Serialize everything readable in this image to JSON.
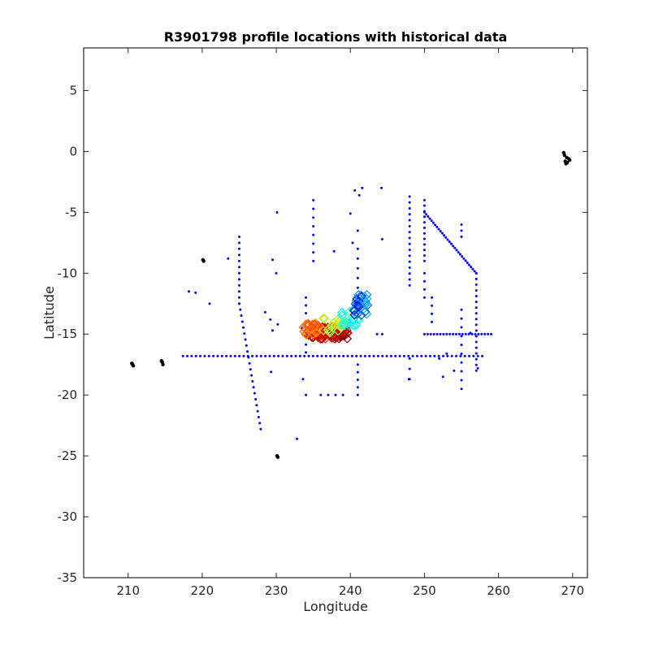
{
  "chart_data": {
    "type": "scatter",
    "title": "R3901798 profile locations with historical data",
    "xlabel": "Longitude",
    "ylabel": "Latitude",
    "xlim": [
      204,
      272
    ],
    "ylim": [
      -35,
      8.5
    ],
    "xticks": [
      210,
      220,
      230,
      240,
      250,
      260,
      270
    ],
    "yticks": [
      5,
      0,
      -5,
      -10,
      -15,
      -20,
      -25,
      -30,
      -35
    ],
    "grid": false,
    "legend": "none",
    "colors": {
      "historical": "#0000ff",
      "coast": "#000000",
      "profiles_early": "#cc0000",
      "profiles_late": "#0000aa"
    },
    "series": [
      {
        "kind": "coast",
        "points": [
          [
            210.6,
            -17.5
          ],
          [
            210.7,
            -17.6
          ],
          [
            210.5,
            -17.4
          ],
          [
            214.6,
            -17.3
          ],
          [
            214.7,
            -17.5
          ],
          [
            214.5,
            -17.2
          ],
          [
            220.1,
            -8.9
          ],
          [
            220.2,
            -9.0
          ],
          [
            230.1,
            -25.0
          ],
          [
            230.2,
            -25.1
          ],
          [
            268.9,
            -0.3
          ],
          [
            269.2,
            -0.5
          ],
          [
            269.0,
            -0.8
          ],
          [
            269.5,
            -0.6
          ],
          [
            269.1,
            -1.0
          ],
          [
            268.8,
            -0.1
          ],
          [
            269.6,
            -0.7
          ],
          [
            269.3,
            -0.9
          ]
        ]
      },
      {
        "kind": "historical_segments",
        "segments": [
          {
            "from": [
              217.4,
              -16.8
            ],
            "to": [
              257.8,
              -16.8
            ],
            "n": 70
          },
          {
            "from": [
              225.0,
              -7.0
            ],
            "to": [
              225.0,
              -12.5
            ],
            "n": 12
          },
          {
            "from": [
              225.0,
              -12.5
            ],
            "to": [
              227.9,
              -22.8
            ],
            "n": 22
          },
          {
            "from": [
              250.0,
              -5.0
            ],
            "to": [
              257.0,
              -10.0
            ],
            "n": 30
          },
          {
            "from": [
              257.0,
              -10.0
            ],
            "to": [
              257.0,
              -18.0
            ],
            "n": 18
          },
          {
            "from": [
              250.0,
              -15.0
            ],
            "to": [
              259.0,
              -15.0
            ],
            "n": 22
          },
          {
            "from": [
              248.0,
              -3.7
            ],
            "to": [
              248.0,
              -11.0
            ],
            "n": 16
          },
          {
            "from": [
              250.0,
              -4.0
            ],
            "to": [
              250.0,
              -9.0
            ],
            "n": 12
          },
          {
            "from": [
              235.0,
              -4.0
            ],
            "to": [
              235.0,
              -9.0
            ],
            "n": 8
          },
          {
            "from": [
              241.0,
              -8.0
            ],
            "to": [
              241.0,
              -12.0
            ],
            "n": 6
          },
          {
            "from": [
              255.0,
              -6.0
            ],
            "to": [
              255.0,
              -7.0
            ],
            "n": 3
          },
          {
            "from": [
              255.0,
              -13.0
            ],
            "to": [
              255.0,
              -19.5
            ],
            "n": 10
          },
          {
            "from": [
              234.0,
              -12.0
            ],
            "to": [
              234.0,
              -16.5
            ],
            "n": 8
          },
          {
            "from": [
              241.0,
              -17.5
            ],
            "to": [
              241.0,
              -20.0
            ],
            "n": 5
          },
          {
            "from": [
              248.0,
              -17.0
            ],
            "to": [
              248.0,
              -18.7
            ],
            "n": 3
          },
          {
            "from": [
              250.0,
              -10.0
            ],
            "to": [
              250.0,
              -12.0
            ],
            "n": 4
          },
          {
            "from": [
              251.0,
              -12.0
            ],
            "to": [
              251.0,
              -14.0
            ],
            "n": 4
          }
        ],
        "points": [
          [
            218.2,
            -11.5
          ],
          [
            219.1,
            -11.6
          ],
          [
            221.0,
            -12.5
          ],
          [
            223.5,
            -8.8
          ],
          [
            229.5,
            -8.9
          ],
          [
            230.0,
            -10.0
          ],
          [
            228.5,
            -13.2
          ],
          [
            229.2,
            -13.8
          ],
          [
            229.5,
            -14.7
          ],
          [
            229.3,
            -18.1
          ],
          [
            230.1,
            -5.0
          ],
          [
            230.2,
            -14.2
          ],
          [
            232.8,
            -23.6
          ],
          [
            233.6,
            -18.7
          ],
          [
            234.0,
            -20.0
          ],
          [
            233.5,
            -14.5
          ],
          [
            236.0,
            -20.0
          ],
          [
            237.0,
            -20.0
          ],
          [
            238.0,
            -20.0
          ],
          [
            239.0,
            -20.0
          ],
          [
            237.8,
            -8.2
          ],
          [
            240.0,
            -5.1
          ],
          [
            240.3,
            -7.5
          ],
          [
            240.6,
            -3.2
          ],
          [
            241.2,
            -3.6
          ],
          [
            241.6,
            -3.0
          ],
          [
            241.0,
            -6.5
          ],
          [
            244.2,
            -3.0
          ],
          [
            244.3,
            -7.2
          ],
          [
            243.6,
            -15.0
          ],
          [
            244.3,
            -15.0
          ],
          [
            236.1,
            -15.0
          ],
          [
            247.9,
            -18.7
          ],
          [
            252.0,
            -17.0
          ],
          [
            253.0,
            -16.6
          ],
          [
            252.5,
            -18.5
          ],
          [
            254.0,
            -18.0
          ],
          [
            256.2,
            -14.9
          ],
          [
            257.2,
            -17.8
          ]
        ]
      },
      {
        "kind": "profiles",
        "note": "float trajectory, colored early (red) to late (blue)",
        "clusters": [
          {
            "center": [
              237.0,
              -14.9
            ],
            "spread": [
              2.7,
              0.5
            ],
            "n": 110,
            "colors": [
              "#8b0000",
              "#cc0000",
              "#ee2200"
            ]
          },
          {
            "center": [
              234.8,
              -14.6
            ],
            "spread": [
              1.2,
              0.5
            ],
            "n": 30,
            "colors": [
              "#ff6600",
              "#ff4400",
              "#ff8800"
            ]
          },
          {
            "center": [
              237.8,
              -14.3
            ],
            "spread": [
              1.6,
              0.6
            ],
            "n": 25,
            "colors": [
              "#ffdd00",
              "#ccff33",
              "#88ff55"
            ]
          },
          {
            "center": [
              240.0,
              -13.7
            ],
            "spread": [
              1.2,
              0.7
            ],
            "n": 25,
            "colors": [
              "#55ffaa",
              "#22ffdd",
              "#00e5ff"
            ]
          },
          {
            "center": [
              241.4,
              -12.6
            ],
            "spread": [
              1.0,
              0.9
            ],
            "n": 30,
            "colors": [
              "#00bbff",
              "#0088ff",
              "#0055ff",
              "#0000cc"
            ]
          }
        ]
      }
    ]
  }
}
